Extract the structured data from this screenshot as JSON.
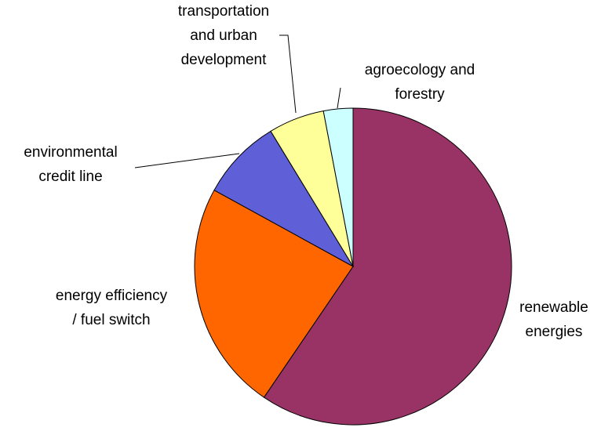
{
  "chart_data": {
    "type": "pie",
    "categories": [
      "renewable\nenergies",
      "energy efficiency\n/ fuel switch",
      "environmental\ncredit line",
      "transportation\nand urban\ndevelopment",
      "agroecology and\nforestry"
    ],
    "values": [
      59.5,
      23.5,
      8.3,
      5.7,
      3.0
    ],
    "colors": [
      "#993366",
      "#FF6600",
      "#5F5FD8",
      "#FFFF99",
      "#CCFFFF"
    ]
  }
}
